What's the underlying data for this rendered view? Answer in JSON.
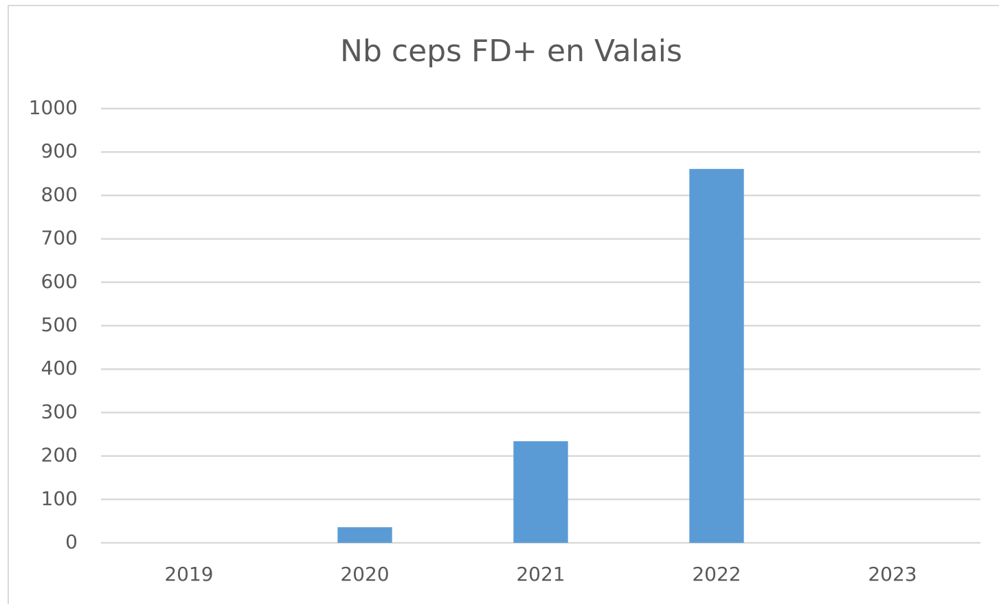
{
  "chart_data": {
    "type": "bar",
    "title": "Nb ceps FD+ en Valais",
    "categories": [
      "2019",
      "2020",
      "2021",
      "2022",
      "2023"
    ],
    "values": [
      0,
      36,
      234,
      861,
      0
    ],
    "color": "#5b9bd5",
    "ylim": [
      0,
      1000
    ],
    "yticks": [
      0,
      100,
      200,
      300,
      400,
      500,
      600,
      700,
      800,
      900,
      1000
    ],
    "grid": true
  }
}
